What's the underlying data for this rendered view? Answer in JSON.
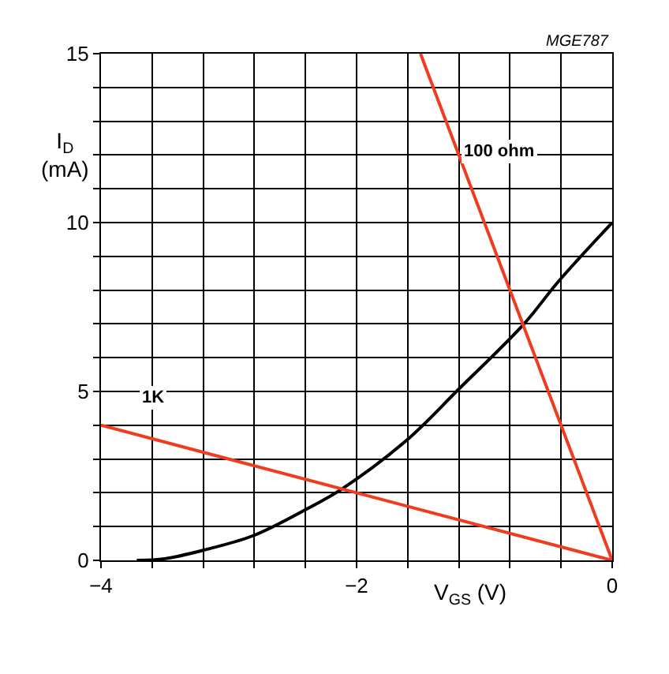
{
  "chart_data": {
    "type": "line",
    "xlabel": "V$_{GS}$ (V)",
    "ylabel": "I$_{D}$\n(mA)",
    "series": [
      {
        "color": "#000000",
        "x": [
          -3.72,
          -3.5,
          -3.2,
          -2.81,
          -2.41,
          -2.12,
          -1.61,
          -1.2,
          -0.69,
          -0.42,
          0
        ],
        "values": [
          0,
          0.05,
          0.3,
          0.73,
          1.48,
          2.1,
          3.55,
          5.07,
          7.0,
          8.26,
          10
        ]
      },
      {
        "color": "#f03c1e",
        "x": [
          -1.5,
          0
        ],
        "values": [
          15,
          0
        ]
      },
      {
        "color": "#f03c1e",
        "x": [
          -4,
          0
        ],
        "values": [
          4,
          0
        ]
      }
    ],
    "annotations": [
      "100 ohm",
      "1K",
      "MGE787"
    ],
    "xlim": [
      -4,
      0
    ],
    "ylim": [
      0,
      15
    ],
    "xticks": [
      -4,
      {
        "value": -3.6,
        "label": null
      },
      {
        "value": -3.2,
        "label": null
      },
      {
        "value": -2.8,
        "label": null
      },
      {
        "value": -2.4,
        "label": null
      },
      -2,
      {
        "value": -1.6,
        "label": null
      },
      {
        "value": -1.2,
        "label": null
      },
      {
        "value": -0.8,
        "label": null
      },
      {
        "value": -0.4,
        "label": null
      },
      0
    ],
    "yticks": [
      0,
      {
        "value": 1,
        "label": null
      },
      {
        "value": 2,
        "label": null
      },
      {
        "value": 3,
        "label": null
      },
      {
        "value": 4,
        "label": null
      },
      5,
      {
        "value": 6,
        "label": null
      },
      {
        "value": 7,
        "label": null
      },
      {
        "value": 8,
        "label": null
      },
      {
        "value": 9,
        "label": null
      },
      10,
      {
        "value": 11,
        "label": null
      },
      {
        "value": 12,
        "label": null
      },
      {
        "value": 13,
        "label": null
      },
      {
        "value": 14,
        "label": null
      },
      15
    ],
    "grid": true,
    "marker": "none",
    "line_style": "solid"
  }
}
